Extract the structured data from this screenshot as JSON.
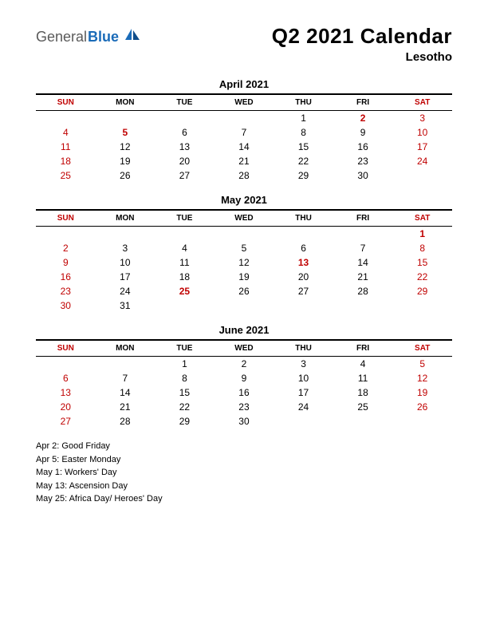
{
  "logo": {
    "general": "General",
    "blue": "Blue"
  },
  "title": "Q2 2021 Calendar",
  "subtitle": "Lesotho",
  "day_headers": [
    "SUN",
    "MON",
    "TUE",
    "WED",
    "THU",
    "FRI",
    "SAT"
  ],
  "weekend_cols": [
    0,
    6
  ],
  "holiday_color": "#c00000",
  "text_color": "#000000",
  "months": [
    {
      "title": "April 2021",
      "weeks": [
        [
          "",
          "",
          "",
          "",
          1,
          2,
          3
        ],
        [
          4,
          5,
          6,
          7,
          8,
          9,
          10
        ],
        [
          11,
          12,
          13,
          14,
          15,
          16,
          17
        ],
        [
          18,
          19,
          20,
          21,
          22,
          23,
          24
        ],
        [
          25,
          26,
          27,
          28,
          29,
          30,
          ""
        ]
      ],
      "holidays": [
        2,
        5
      ]
    },
    {
      "title": "May 2021",
      "weeks": [
        [
          "",
          "",
          "",
          "",
          "",
          "",
          1
        ],
        [
          2,
          3,
          4,
          5,
          6,
          7,
          8
        ],
        [
          9,
          10,
          11,
          12,
          13,
          14,
          15
        ],
        [
          16,
          17,
          18,
          19,
          20,
          21,
          22
        ],
        [
          23,
          24,
          25,
          26,
          27,
          28,
          29
        ],
        [
          30,
          31,
          "",
          "",
          "",
          "",
          ""
        ]
      ],
      "holidays": [
        1,
        13,
        25
      ]
    },
    {
      "title": "June 2021",
      "weeks": [
        [
          "",
          "",
          1,
          2,
          3,
          4,
          5
        ],
        [
          6,
          7,
          8,
          9,
          10,
          11,
          12
        ],
        [
          13,
          14,
          15,
          16,
          17,
          18,
          19
        ],
        [
          20,
          21,
          22,
          23,
          24,
          25,
          26
        ],
        [
          27,
          28,
          29,
          30,
          "",
          "",
          ""
        ]
      ],
      "holidays": []
    }
  ],
  "holiday_list": [
    "Apr 2: Good Friday",
    "Apr 5: Easter Monday",
    "May 1: Workers' Day",
    "May 13: Ascension Day",
    "May 25: Africa Day/ Heroes' Day"
  ]
}
